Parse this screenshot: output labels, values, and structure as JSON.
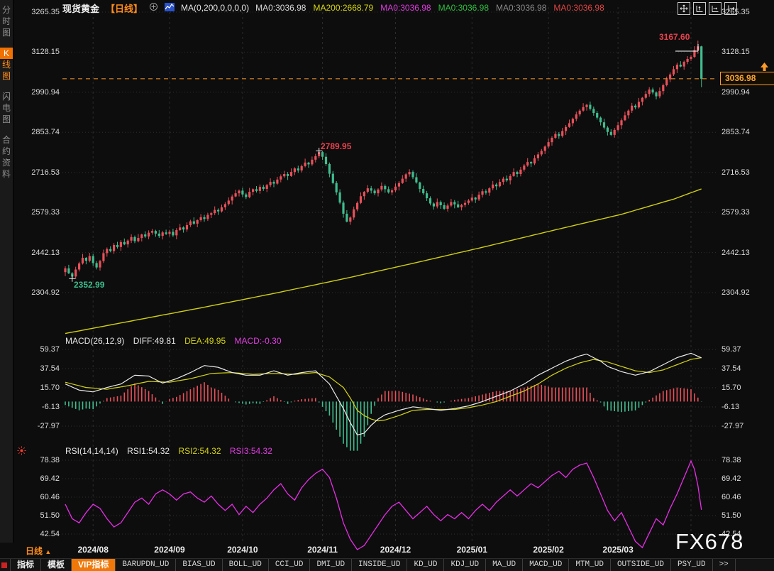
{
  "sidebar": {
    "tabs": [
      {
        "label": "分时图",
        "active": false
      },
      {
        "label": "K线图",
        "active": true
      },
      {
        "label": "闪电图",
        "active": false
      },
      {
        "label": "合约资料",
        "active": false
      }
    ]
  },
  "header": {
    "symbol": "现货黄金",
    "period": "【日线】",
    "ma_formula": "MA(0,200,0,0,0,0)",
    "ma_values": [
      {
        "text": "MA0:3036.98",
        "color": "#d9d9d9"
      },
      {
        "text": "MA200:2668.79",
        "color": "#d6d614"
      },
      {
        "text": "MA0:3036.98",
        "color": "#e03ce0"
      },
      {
        "text": "MA0:3036.98",
        "color": "#2fbf3f"
      },
      {
        "text": "MA0:3036.98",
        "color": "#8a8a8a"
      },
      {
        "text": "MA0:3036.98",
        "color": "#e04545"
      }
    ],
    "window_icons": [
      "pan-icon",
      "scale-vertical-icon",
      "scale-horizontal-icon",
      "pane-exit-icon"
    ]
  },
  "price_axis": [
    "3265.35",
    "3128.15",
    "2990.94",
    "2853.74",
    "2716.53",
    "2579.33",
    "2442.13",
    "2304.92"
  ],
  "annotations": {
    "high": "3167.60",
    "swing_high": "2789.95",
    "low": "2352.99",
    "last_price": "3036.98"
  },
  "macd": {
    "title": "MACD(26,12,9)",
    "diff_label": "DIFF:49.81",
    "dea_label": "DEA:49.95",
    "macd_label": "MACD:-0.30",
    "axis": [
      "59.37",
      "37.54",
      "15.70",
      "-6.13",
      "-27.97"
    ]
  },
  "rsi": {
    "title": "RSI(14,14,14)",
    "rsi1_label": "RSI1:54.32",
    "rsi2_label": "RSI2:54.32",
    "rsi3_label": "RSI3:54.32",
    "axis": [
      "78.38",
      "69.42",
      "60.46",
      "51.50",
      "42.54"
    ]
  },
  "xaxis": {
    "period": "日线",
    "dates": [
      "2024/08",
      "2024/09",
      "2024/10",
      "2024/11",
      "2024/12",
      "2025/01",
      "2025/02",
      "2025/03"
    ]
  },
  "watermark": "FX678",
  "toolbar": {
    "tabs": [
      {
        "label": "指标",
        "type": "plain"
      },
      {
        "label": "模板",
        "type": "plain"
      },
      {
        "label": "VIP指标",
        "type": "vip"
      },
      {
        "label": "BARUPDN_UD",
        "type": "ud"
      },
      {
        "label": "BIAS_UD",
        "type": "ud"
      },
      {
        "label": "BOLL_UD",
        "type": "ud"
      },
      {
        "label": "CCI_UD",
        "type": "ud"
      },
      {
        "label": "DMI_UD",
        "type": "ud"
      },
      {
        "label": "INSIDE_UD",
        "type": "ud"
      },
      {
        "label": "KD_UD",
        "type": "ud"
      },
      {
        "label": "KDJ_UD",
        "type": "ud"
      },
      {
        "label": "MA_UD",
        "type": "ud"
      },
      {
        "label": "MACD_UD",
        "type": "ud"
      },
      {
        "label": "MTM_UD",
        "type": "ud"
      },
      {
        "label": "OUTSIDE_UD",
        "type": "ud"
      },
      {
        "label": "PSY_UD",
        "type": "ud"
      },
      {
        "label": ">>",
        "type": "ud"
      }
    ]
  },
  "chart_data": {
    "type": "candlestick",
    "title": "现货黄金 日线 (Spot Gold, Daily)",
    "ylim": [
      2304.92,
      3265.35
    ],
    "y_ticks": [
      3265.35,
      3128.15,
      2990.94,
      2853.74,
      2716.53,
      2579.33,
      2442.13,
      2304.92
    ],
    "x_months": [
      "2024/08",
      "2024/09",
      "2024/10",
      "2024/11",
      "2024/12",
      "2025/01",
      "2025/02",
      "2025/03"
    ],
    "last_close": 3036.98,
    "session_high": 3167.6,
    "swing_high": 2789.95,
    "swing_low": 2352.99,
    "ma200_last": 2668.79,
    "first_open": 2375,
    "closes": [
      2388,
      2371,
      2360,
      2384,
      2405,
      2424,
      2414,
      2430,
      2406,
      2391,
      2413,
      2440,
      2454,
      2447,
      2468,
      2461,
      2478,
      2470,
      2483,
      2495,
      2481,
      2492,
      2504,
      2497,
      2510,
      2516,
      2507,
      2499,
      2511,
      2506,
      2513,
      2501,
      2519,
      2528,
      2521,
      2536,
      2549,
      2541,
      2553,
      2563,
      2557,
      2571,
      2577,
      2588,
      2583,
      2597,
      2608,
      2620,
      2634,
      2645,
      2654,
      2641,
      2632,
      2650,
      2659,
      2653,
      2667,
      2660,
      2673,
      2684,
      2678,
      2692,
      2703,
      2711,
      2704,
      2718,
      2730,
      2723,
      2738,
      2750,
      2744,
      2760,
      2772,
      2786,
      2770,
      2745,
      2712,
      2680,
      2648,
      2613,
      2575,
      2548,
      2562,
      2590,
      2612,
      2635,
      2650,
      2662,
      2654,
      2645,
      2658,
      2670,
      2659,
      2648,
      2655,
      2668,
      2680,
      2695,
      2710,
      2718,
      2700,
      2682,
      2660,
      2645,
      2628,
      2610,
      2600,
      2615,
      2604,
      2592,
      2603,
      2615,
      2607,
      2597,
      2605,
      2612,
      2620,
      2630,
      2624,
      2640,
      2652,
      2647,
      2662,
      2675,
      2669,
      2684,
      2695,
      2689,
      2704,
      2718,
      2711,
      2726,
      2740,
      2752,
      2747,
      2765,
      2778,
      2790,
      2805,
      2820,
      2835,
      2848,
      2841,
      2858,
      2872,
      2885,
      2900,
      2915,
      2928,
      2940,
      2948,
      2934,
      2920,
      2904,
      2888,
      2870,
      2855,
      2845,
      2862,
      2878,
      2895,
      2912,
      2928,
      2945,
      2939,
      2958,
      2972,
      2985,
      3000,
      2990,
      2977,
      2995,
      3015,
      3035,
      3052,
      3070,
      3085,
      3079,
      3095,
      3105,
      3112,
      3135,
      3148,
      3036.98
    ],
    "wick_pattern": [
      5,
      9,
      3,
      7,
      4,
      10,
      2,
      8,
      6,
      5,
      3,
      9,
      4,
      7,
      5,
      8
    ],
    "wick_scale": 0.55,
    "overrides": {
      "2": {
        "low": 2352.99
      },
      "73": {
        "high": 2789.95
      },
      "182": {
        "high": 3167.6
      },
      "183": {
        "high": 3150,
        "low": 3008
      }
    },
    "month_start_indices": [
      8,
      30,
      51,
      74,
      95,
      117,
      139,
      159,
      180
    ],
    "swing_low_index": 2,
    "swing_high_index": 73,
    "ma200_anchors": [
      [
        0,
        2165
      ],
      [
        20,
        2210
      ],
      [
        40,
        2255
      ],
      [
        60,
        2302
      ],
      [
        80,
        2352
      ],
      [
        100,
        2405
      ],
      [
        120,
        2460
      ],
      [
        140,
        2517
      ],
      [
        160,
        2573
      ],
      [
        175,
        2625
      ],
      [
        183,
        2660
      ]
    ],
    "macd": {
      "ylim": [
        -27.97,
        59.37
      ],
      "hist_scale": 2,
      "diff_anchors": [
        [
          0,
          20
        ],
        [
          4,
          13
        ],
        [
          8,
          11
        ],
        [
          12,
          16
        ],
        [
          16,
          20
        ],
        [
          20,
          30
        ],
        [
          24,
          29
        ],
        [
          28,
          21
        ],
        [
          32,
          26
        ],
        [
          36,
          33
        ],
        [
          40,
          41
        ],
        [
          44,
          39
        ],
        [
          48,
          33
        ],
        [
          52,
          30
        ],
        [
          56,
          30
        ],
        [
          60,
          35
        ],
        [
          64,
          30
        ],
        [
          68,
          33
        ],
        [
          72,
          35
        ],
        [
          76,
          20
        ],
        [
          80,
          -8
        ],
        [
          82,
          -24
        ],
        [
          84,
          -38
        ],
        [
          86,
          -36
        ],
        [
          88,
          -27
        ],
        [
          90,
          -20
        ],
        [
          92,
          -15
        ],
        [
          96,
          -10
        ],
        [
          100,
          -6
        ],
        [
          104,
          -8
        ],
        [
          108,
          -10
        ],
        [
          112,
          -8
        ],
        [
          116,
          -5
        ],
        [
          120,
          0
        ],
        [
          124,
          6
        ],
        [
          128,
          12
        ],
        [
          132,
          20
        ],
        [
          136,
          30
        ],
        [
          140,
          38
        ],
        [
          144,
          46
        ],
        [
          148,
          52
        ],
        [
          150,
          54
        ],
        [
          152,
          50
        ],
        [
          154,
          46
        ],
        [
          156,
          40
        ],
        [
          160,
          34
        ],
        [
          164,
          30
        ],
        [
          168,
          34
        ],
        [
          172,
          42
        ],
        [
          176,
          50
        ],
        [
          180,
          55
        ],
        [
          183,
          49.81
        ]
      ],
      "dea_anchors": [
        [
          0,
          22
        ],
        [
          6,
          16
        ],
        [
          12,
          14
        ],
        [
          18,
          18
        ],
        [
          24,
          23
        ],
        [
          30,
          22
        ],
        [
          36,
          26
        ],
        [
          42,
          32
        ],
        [
          48,
          33
        ],
        [
          54,
          31
        ],
        [
          60,
          32
        ],
        [
          66,
          31
        ],
        [
          72,
          33
        ],
        [
          76,
          28
        ],
        [
          80,
          16
        ],
        [
          82,
          4
        ],
        [
          84,
          -10
        ],
        [
          86,
          -16
        ],
        [
          88,
          -20
        ],
        [
          90,
          -22
        ],
        [
          92,
          -21
        ],
        [
          96,
          -16
        ],
        [
          100,
          -10
        ],
        [
          104,
          -9
        ],
        [
          108,
          -9
        ],
        [
          112,
          -9
        ],
        [
          116,
          -7
        ],
        [
          120,
          -4
        ],
        [
          124,
          0
        ],
        [
          128,
          6
        ],
        [
          132,
          12
        ],
        [
          136,
          20
        ],
        [
          140,
          30
        ],
        [
          144,
          38
        ],
        [
          148,
          44
        ],
        [
          152,
          48
        ],
        [
          154,
          46.5
        ],
        [
          156,
          45
        ],
        [
          160,
          40
        ],
        [
          164,
          35
        ],
        [
          168,
          33
        ],
        [
          172,
          36
        ],
        [
          176,
          42
        ],
        [
          180,
          48
        ],
        [
          183,
          49.95
        ]
      ]
    },
    "rsi": {
      "ylim": [
        42.54,
        78.38
      ],
      "anchors": [
        [
          0,
          57
        ],
        [
          2,
          50
        ],
        [
          4,
          48
        ],
        [
          6,
          53
        ],
        [
          8,
          57
        ],
        [
          10,
          55
        ],
        [
          12,
          50
        ],
        [
          14,
          46
        ],
        [
          16,
          48
        ],
        [
          18,
          53
        ],
        [
          20,
          58
        ],
        [
          22,
          60
        ],
        [
          24,
          57
        ],
        [
          26,
          62
        ],
        [
          28,
          64
        ],
        [
          30,
          62
        ],
        [
          32,
          59
        ],
        [
          34,
          62
        ],
        [
          36,
          63
        ],
        [
          38,
          60
        ],
        [
          40,
          58
        ],
        [
          42,
          61
        ],
        [
          44,
          57
        ],
        [
          46,
          54
        ],
        [
          48,
          57
        ],
        [
          50,
          52
        ],
        [
          52,
          56
        ],
        [
          54,
          53
        ],
        [
          56,
          57
        ],
        [
          58,
          60
        ],
        [
          60,
          64
        ],
        [
          62,
          67
        ],
        [
          64,
          62
        ],
        [
          66,
          59
        ],
        [
          68,
          65
        ],
        [
          70,
          69
        ],
        [
          72,
          72
        ],
        [
          74,
          74
        ],
        [
          76,
          70
        ],
        [
          78,
          60
        ],
        [
          80,
          48
        ],
        [
          82,
          40
        ],
        [
          84,
          35
        ],
        [
          86,
          37
        ],
        [
          88,
          42
        ],
        [
          90,
          47
        ],
        [
          92,
          52
        ],
        [
          94,
          56
        ],
        [
          96,
          58
        ],
        [
          98,
          54
        ],
        [
          100,
          50
        ],
        [
          102,
          53
        ],
        [
          104,
          56
        ],
        [
          106,
          52
        ],
        [
          108,
          49
        ],
        [
          110,
          52
        ],
        [
          112,
          50
        ],
        [
          114,
          53
        ],
        [
          116,
          50
        ],
        [
          118,
          54
        ],
        [
          120,
          57
        ],
        [
          122,
          54
        ],
        [
          124,
          58
        ],
        [
          126,
          61
        ],
        [
          128,
          64
        ],
        [
          130,
          61
        ],
        [
          132,
          64
        ],
        [
          134,
          67
        ],
        [
          136,
          65
        ],
        [
          138,
          68
        ],
        [
          140,
          71
        ],
        [
          142,
          73
        ],
        [
          144,
          70
        ],
        [
          146,
          74
        ],
        [
          148,
          76
        ],
        [
          150,
          77
        ],
        [
          152,
          70
        ],
        [
          154,
          62
        ],
        [
          156,
          54
        ],
        [
          158,
          49
        ],
        [
          160,
          53
        ],
        [
          162,
          46
        ],
        [
          164,
          39
        ],
        [
          166,
          36
        ],
        [
          168,
          43
        ],
        [
          170,
          50
        ],
        [
          172,
          47
        ],
        [
          174,
          55
        ],
        [
          176,
          62
        ],
        [
          178,
          70
        ],
        [
          180,
          78
        ],
        [
          181,
          74
        ],
        [
          182,
          66
        ],
        [
          183,
          54.32
        ]
      ]
    },
    "colors": {
      "up": "#e8505a",
      "down": "#3fbd8f",
      "ma200": "#d0d010",
      "diff": "#ededed",
      "dea": "#d4d414",
      "rsi": "#e82ee8",
      "last_price_line": "#ff9b2b",
      "accent_orange": "#ff8c1a"
    }
  }
}
